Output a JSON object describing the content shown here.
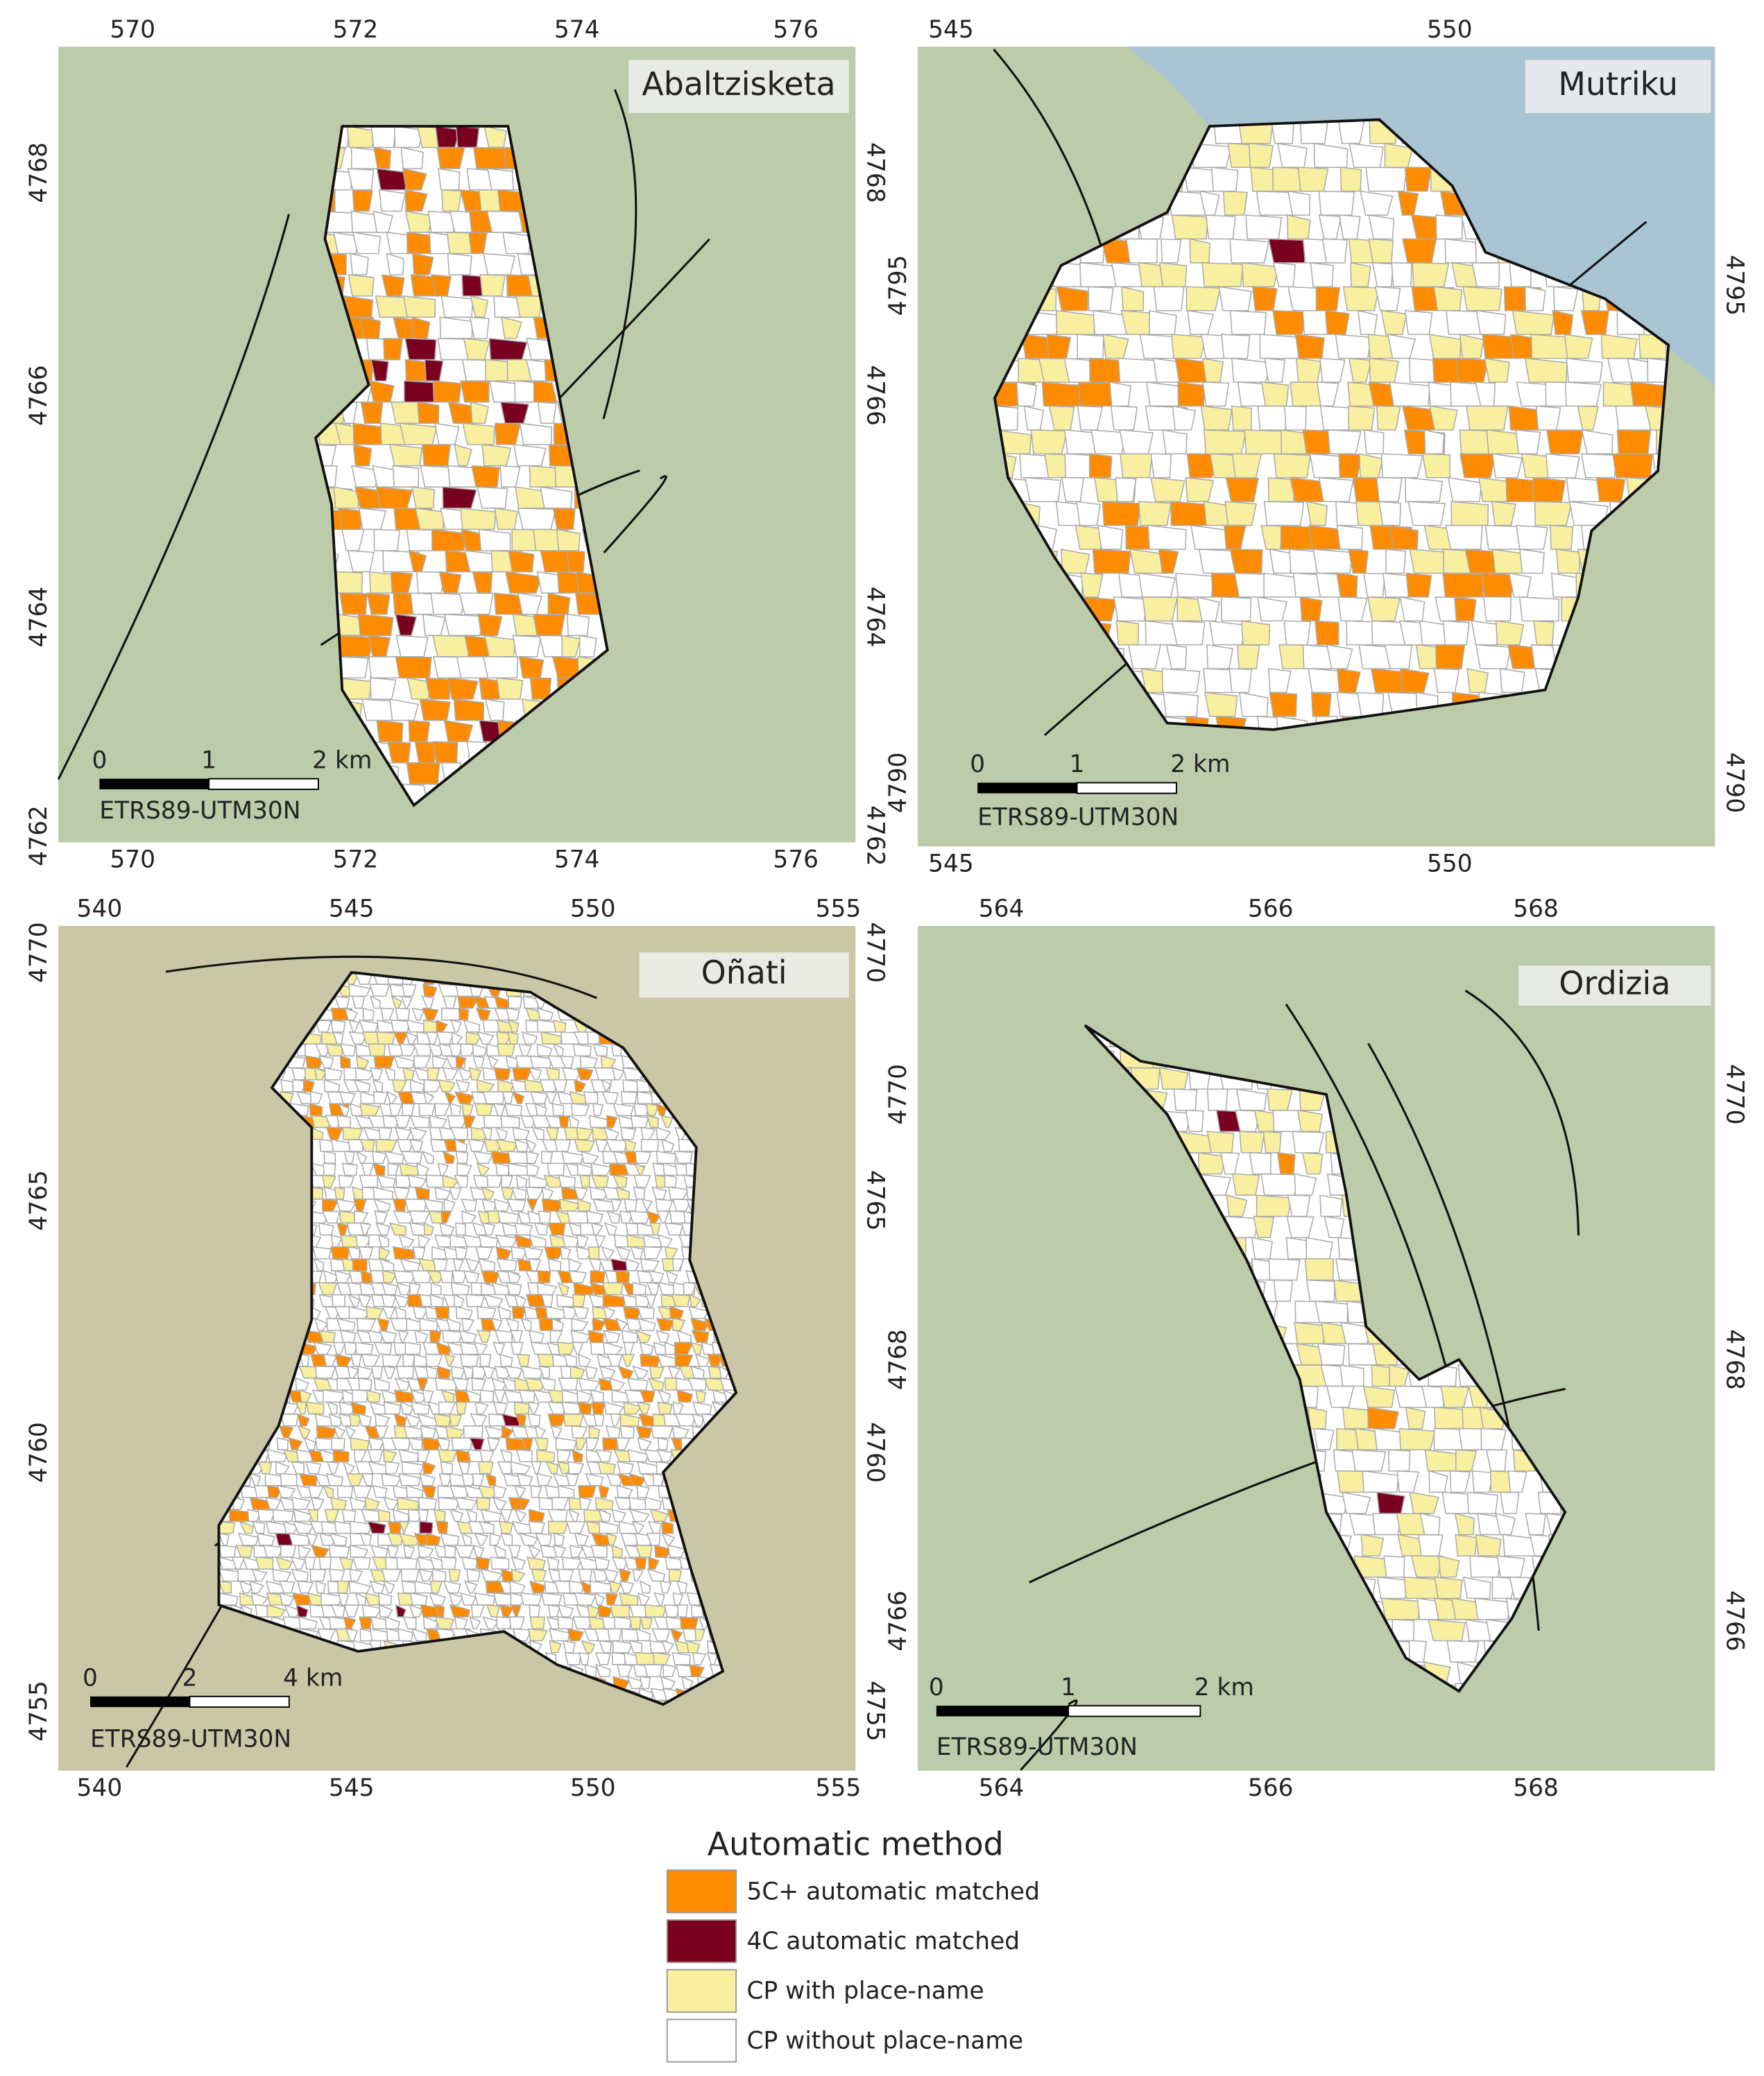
{
  "panels": [
    {
      "title": "Abaltzisketa",
      "x_ticks": [
        570,
        572,
        574,
        576
      ],
      "y_ticks": [
        4768,
        4766,
        4764,
        4762
      ],
      "scale": [
        "0",
        "1",
        "2 km"
      ],
      "crs": "ETRS89-UTM30N"
    },
    {
      "title": "Mutriku",
      "x_ticks": [
        545,
        550
      ],
      "y_ticks": [
        4795,
        4790
      ],
      "scale": [
        "0",
        "1",
        "2 km"
      ],
      "crs": "ETRS89-UTM30N"
    },
    {
      "title": "Oñati",
      "x_ticks": [
        540,
        545,
        550,
        555
      ],
      "y_ticks": [
        4770,
        4765,
        4760,
        4755
      ],
      "scale": [
        "0",
        "2",
        "4 km"
      ],
      "crs": "ETRS89-UTM30N"
    },
    {
      "title": "Ordizia",
      "x_ticks": [
        564,
        566,
        568
      ],
      "y_ticks": [
        4770,
        4768,
        4766
      ],
      "scale": [
        "0",
        "1",
        "2 km"
      ],
      "crs": "ETRS89-UTM30N"
    }
  ],
  "legend": {
    "title": "Automatic method",
    "items": [
      {
        "label": "5C+ automatic matched",
        "color": "#ff8c00"
      },
      {
        "label": "4C automatic matched",
        "color": "#7a0020"
      },
      {
        "label": "CP with place-name",
        "color": "#f8f0a0"
      },
      {
        "label": "CP without place-name",
        "color": "#ffffff"
      }
    ]
  }
}
